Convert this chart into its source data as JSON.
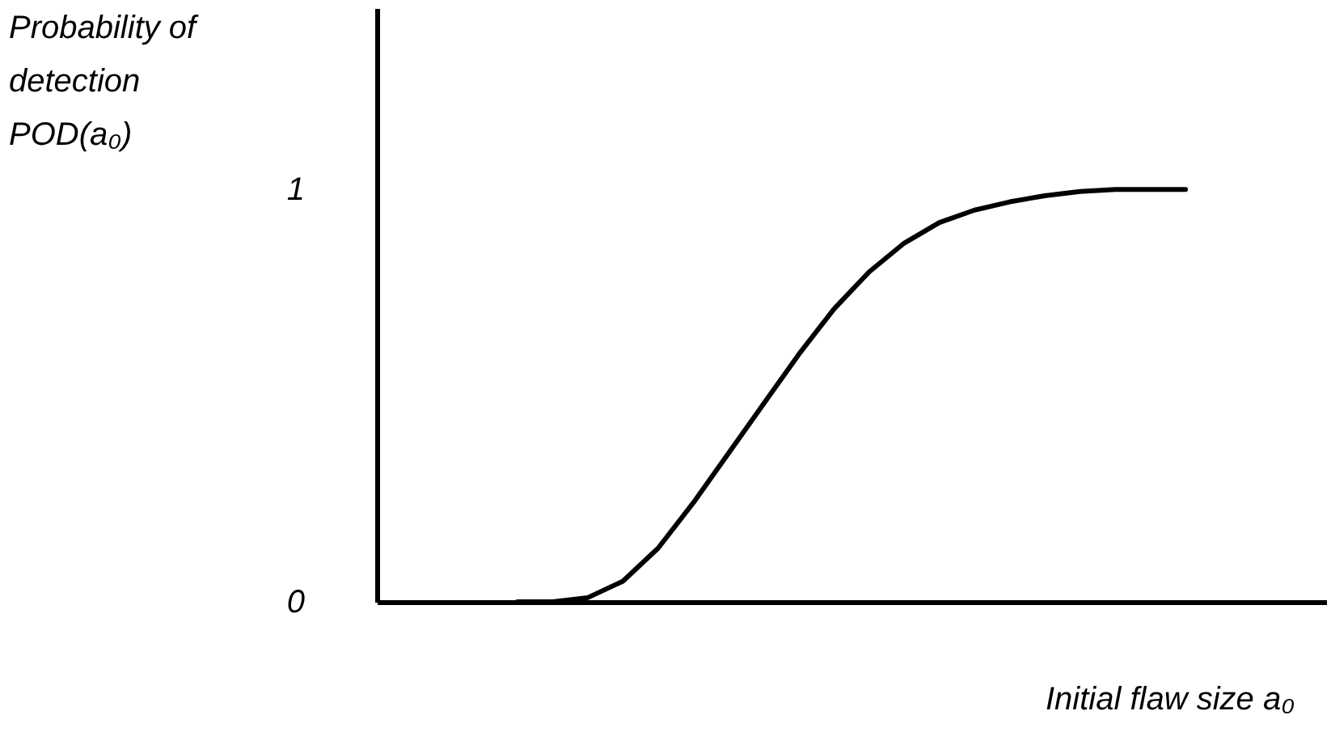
{
  "chart_data": {
    "type": "line",
    "ylabel": "Probability of detection POD(a₀)",
    "xlabel": "Initial flaw size a₀",
    "categories": [
      null,
      null,
      null,
      null,
      null,
      null,
      null,
      null,
      null,
      null,
      null,
      null,
      null,
      null,
      null,
      null,
      null,
      null,
      null,
      null,
      null,
      null,
      null,
      null,
      null,
      null,
      null,
      null
    ],
    "values": [
      null,
      null,
      null,
      null,
      0,
      0,
      0.01,
      0.05,
      0.13,
      0.24,
      0.36,
      0.48,
      0.6,
      0.71,
      0.8,
      0.87,
      0.92,
      0.95,
      0.97,
      0.985,
      0.995,
      1,
      1,
      1,
      null,
      null,
      null,
      null
    ],
    "color": "#000000",
    "ylim": [
      0,
      1.44
    ],
    "yticks": [
      0,
      1
    ],
    "tick_labels": "y",
    "line_style": "solid"
  }
}
